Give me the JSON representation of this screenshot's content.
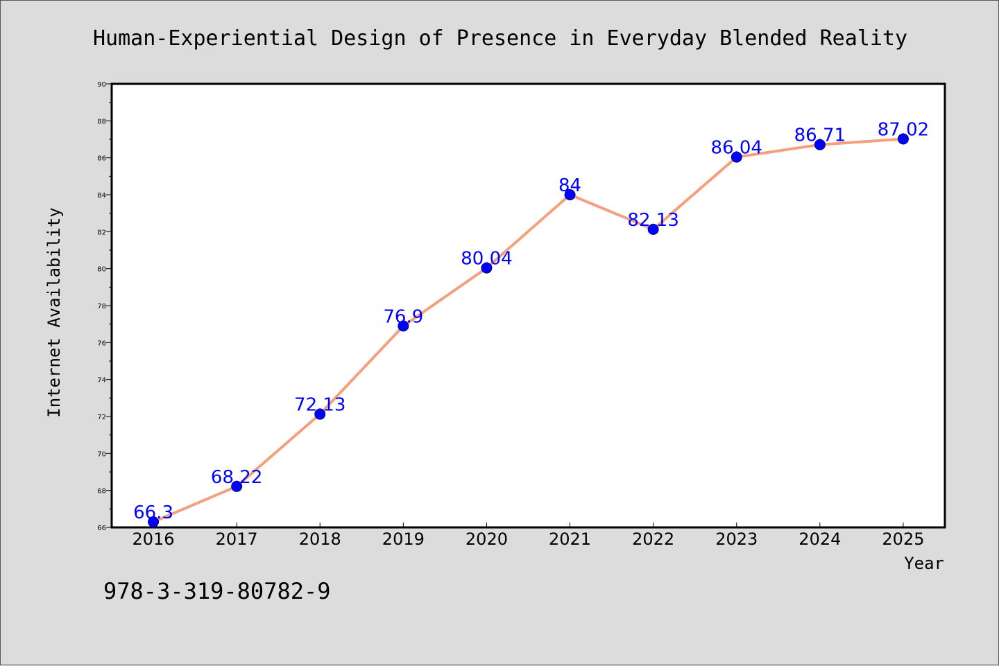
{
  "chart_data": {
    "type": "line",
    "title": "Human-Experiential Design of Presence in Everyday Blended Reality",
    "xlabel": "Year",
    "ylabel": "Internet Availability",
    "categories": [
      "2016",
      "2017",
      "2018",
      "2019",
      "2020",
      "2021",
      "2022",
      "2023",
      "2024",
      "2025"
    ],
    "series": [
      {
        "values": [
          66.3,
          68.22,
          72.13,
          76.9,
          80.04,
          84,
          82.13,
          86.04,
          86.71,
          87.02
        ],
        "labels": [
          "66.3",
          "68.22",
          "72.13",
          "76.9",
          "80.04",
          "84",
          "82.13",
          "86.04",
          "86.71",
          "87.02"
        ]
      }
    ],
    "ylim": [
      66,
      90
    ],
    "yticks": [
      "66",
      "68",
      "70",
      "72",
      "74",
      "76",
      "78",
      "80",
      "82",
      "84",
      "86",
      "88",
      "90"
    ],
    "grid": false,
    "legend": "none",
    "colors": {
      "line": "#f4a07e",
      "marker": "#0000ff",
      "marker_edge": "#000080",
      "data_label": "#0000ff",
      "plot_background": "#ffffff",
      "figure_background": "#dcdcdc"
    }
  },
  "footer": {
    "id_text": "978-3-319-80782-9"
  }
}
